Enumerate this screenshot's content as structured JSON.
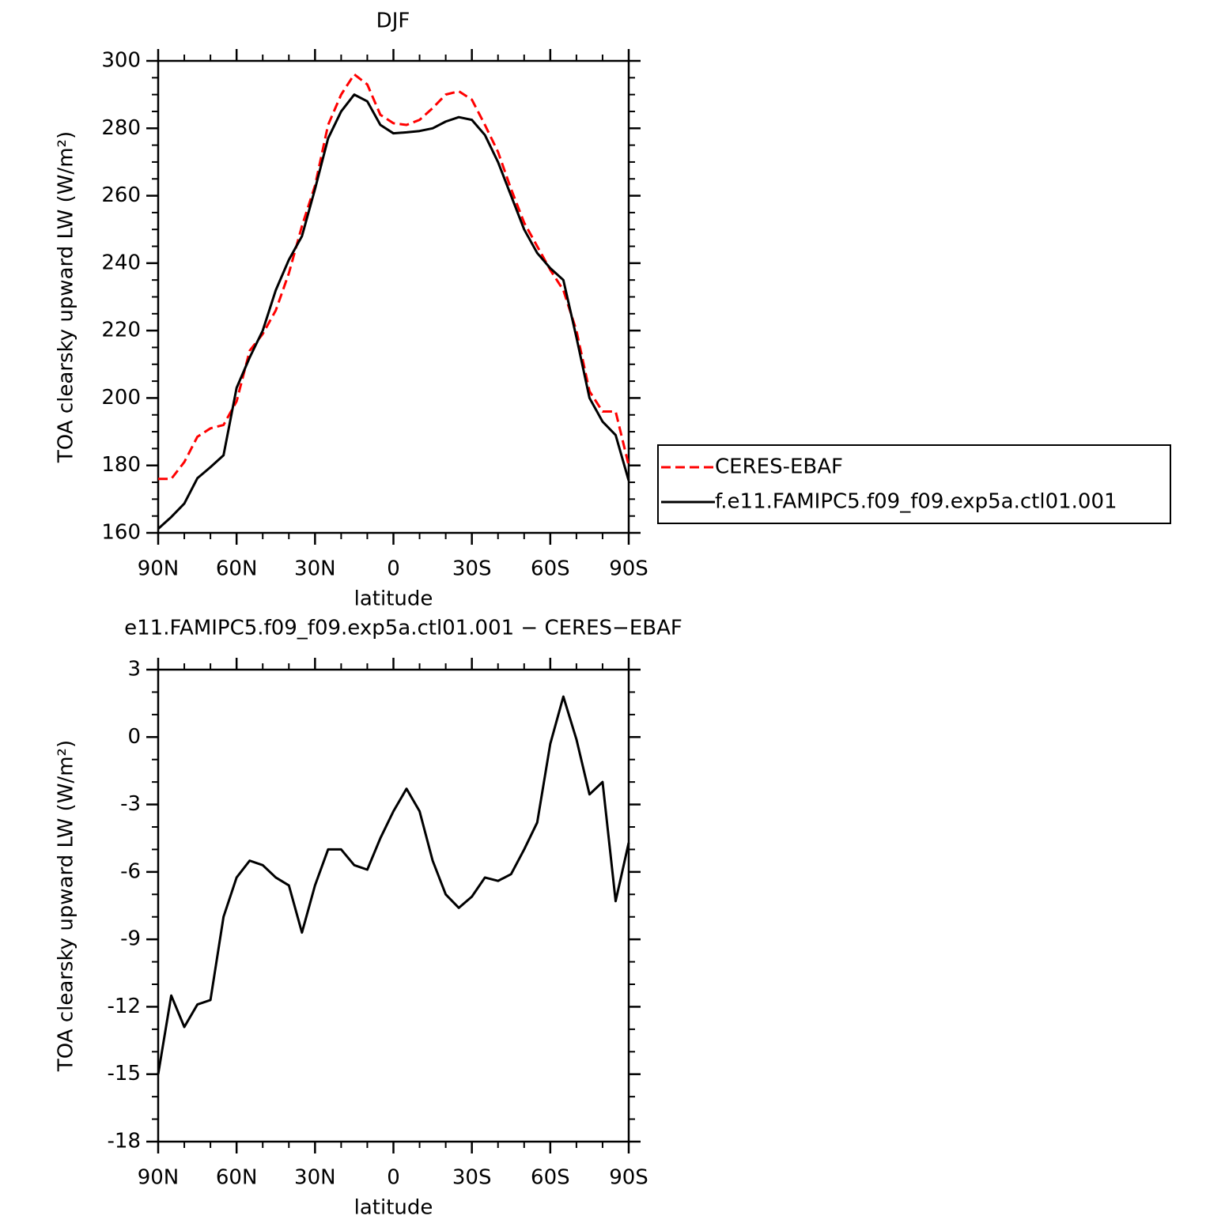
{
  "chart_data": [
    {
      "type": "line",
      "title": "DJF",
      "x_label": "latitude",
      "y_label": "TOA clearsky upward LW (W/m²)",
      "x": [
        90,
        85,
        80,
        75,
        70,
        65,
        60,
        55,
        50,
        45,
        40,
        35,
        30,
        25,
        20,
        15,
        10,
        5,
        0,
        -5,
        -10,
        -15,
        -20,
        -25,
        -30,
        -35,
        -40,
        -45,
        -50,
        -55,
        -60,
        -65,
        -70,
        -75,
        -80,
        -85,
        -90
      ],
      "series": [
        {
          "name": "CERES-EBAF",
          "color": "#ff0000",
          "linestyle": "dashed",
          "values": [
            176,
            176,
            181,
            188.5,
            191,
            192,
            199,
            214,
            219,
            226,
            237,
            251,
            263,
            281,
            290,
            296,
            293,
            284,
            281.5,
            281,
            282.5,
            286,
            290,
            291,
            288.5,
            281,
            273,
            262,
            252,
            245,
            238,
            232,
            220,
            202,
            196,
            196,
            180
          ]
        },
        {
          "name": "f.e11.FAMIPC5.f09_f09.exp5a.ctl01.001",
          "color": "#000000",
          "linestyle": "solid",
          "values": [
            161.2,
            164.7,
            168.7,
            176.2,
            179.5,
            183,
            203,
            212,
            220,
            232,
            241,
            248,
            262,
            277,
            285,
            290,
            288,
            281,
            278.5,
            278.8,
            279.2,
            280,
            282,
            283.3,
            282.5,
            278,
            270,
            260,
            250,
            243,
            238.5,
            235,
            218,
            200,
            193,
            189,
            175.5
          ]
        }
      ],
      "xlim": [
        90,
        -90
      ],
      "xticks": [
        {
          "value": 90,
          "label": "90N"
        },
        {
          "value": 60,
          "label": "60N"
        },
        {
          "value": 30,
          "label": "30N"
        },
        0,
        {
          "value": -30,
          "label": "30S"
        },
        {
          "value": -60,
          "label": "60S"
        },
        {
          "value": -90,
          "label": "90S"
        }
      ],
      "ylim": [
        160,
        300
      ],
      "yticks": [
        160,
        180,
        200,
        220,
        240,
        260,
        280,
        300
      ],
      "legend": "right"
    },
    {
      "type": "line",
      "title": "e11.FAMIPC5.f09_f09.exp5a.ctl01.001 − CERES−EBAF",
      "x_label": "latitude",
      "y_label": "TOA clearsky upward LW (W/m²)",
      "x": [
        90,
        85,
        80,
        75,
        70,
        65,
        60,
        55,
        50,
        45,
        40,
        35,
        30,
        25,
        20,
        15,
        10,
        5,
        0,
        -5,
        -10,
        -15,
        -20,
        -25,
        -30,
        -35,
        -40,
        -45,
        -50,
        -55,
        -60,
        -65,
        -70,
        -75,
        -80,
        -85,
        -90
      ],
      "series": [
        {
          "color": "#000000",
          "linestyle": "solid",
          "values": [
            -15,
            -11.5,
            -12.9,
            -11.9,
            -11.7,
            -8,
            -6.25,
            -5.5,
            -5.7,
            -6.25,
            -6.6,
            -8.7,
            -6.6,
            -5,
            -5,
            -5.7,
            -5.9,
            -4.5,
            -3.3,
            -2.3,
            -3.3,
            -5.5,
            -7,
            -7.6,
            -7.1,
            -6.25,
            -6.4,
            -6.1,
            -5,
            -3.8,
            -0.3,
            1.8,
            -0.1,
            -2.55,
            -2,
            -7.3,
            -4.7
          ]
        }
      ],
      "xlim": [
        90,
        -90
      ],
      "xticks": [
        {
          "value": 90,
          "label": "90N"
        },
        {
          "value": 60,
          "label": "60N"
        },
        {
          "value": 30,
          "label": "30N"
        },
        0,
        {
          "value": -30,
          "label": "30S"
        },
        {
          "value": -60,
          "label": "60S"
        },
        {
          "value": -90,
          "label": "90S"
        }
      ],
      "ylim": [
        -18,
        3
      ],
      "yticks": [
        -18,
        -15,
        -12,
        -9,
        -6,
        -3,
        0,
        3
      ]
    }
  ]
}
